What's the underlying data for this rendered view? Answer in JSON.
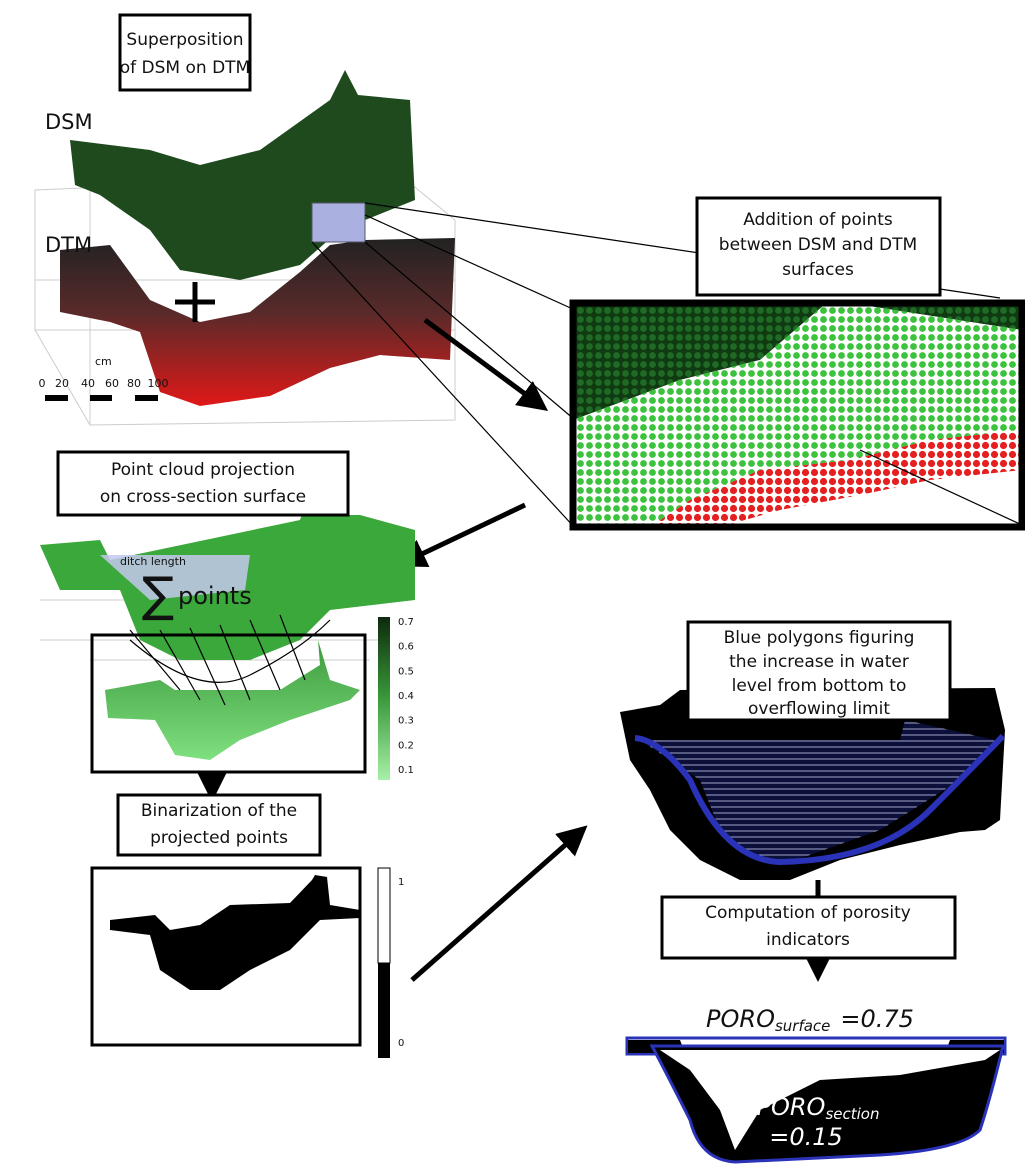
{
  "panel_dsm_dtm": {
    "box": [
      "Superposition",
      "of DSM on DTM"
    ],
    "dsm_label": "DSM",
    "dtm_label": "DTM",
    "scale_unit": "cm",
    "scale_ticks": [
      "0",
      "20",
      "40",
      "60",
      "80",
      "100"
    ]
  },
  "panel_addition": {
    "box": [
      "Addition of points",
      "between DSM and DTM",
      "surfaces"
    ]
  },
  "panel_projection": {
    "box": [
      "Point cloud projection",
      "on cross-section surface"
    ],
    "ditch_label": "ditch length",
    "sum_symbol": "∑",
    "sum_label": "points",
    "colorbar_ticks": [
      0.7,
      0.6,
      0.5,
      0.4,
      0.3,
      0.2,
      0.1
    ]
  },
  "panel_binarization": {
    "box": [
      "Binarization of the",
      "projected points"
    ],
    "colorbar_ticks": [
      1,
      0
    ]
  },
  "panel_polygons": {
    "box": [
      "Blue polygons figuring",
      "the increase in water",
      "level from bottom to",
      "overflowing limit"
    ]
  },
  "panel_porosity": {
    "box": [
      "Computation of porosity",
      "indicators"
    ],
    "surface": {
      "name": "PORO",
      "subscript": "surface",
      "value": "=0.75"
    },
    "section": {
      "name": "PORO",
      "subscript": "section",
      "value": "=0.15"
    }
  }
}
